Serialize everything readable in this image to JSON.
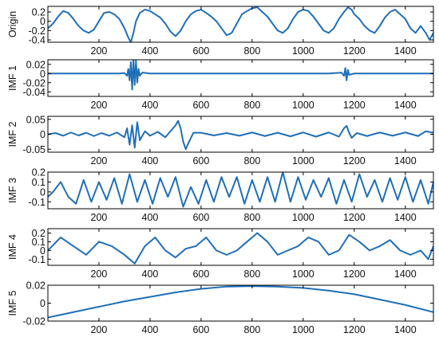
{
  "chart_data": [
    {
      "type": "line",
      "ylabel": "Origin",
      "xlim": [
        0,
        1510
      ],
      "ylim": [
        -0.45,
        0.32
      ],
      "xticks": [
        200,
        400,
        600,
        800,
        1000,
        1200,
        1400
      ],
      "yticks": [
        0.2,
        0,
        -0.2,
        -0.4
      ],
      "ytick_labels": [
        "0.2",
        "0",
        "-0.2",
        "-0.4"
      ],
      "grid": false,
      "color": "#1f6fb8",
      "series": [
        {
          "x": [
            0,
            20,
            40,
            60,
            80,
            100,
            120,
            140,
            160,
            180,
            200,
            220,
            240,
            260,
            280,
            300,
            315,
            325,
            335,
            345,
            360,
            380,
            400,
            420,
            440,
            460,
            480,
            500,
            520,
            540,
            560,
            580,
            600,
            620,
            640,
            660,
            680,
            700,
            720,
            740,
            760,
            780,
            800,
            820,
            840,
            860,
            880,
            900,
            920,
            940,
            960,
            980,
            1000,
            1020,
            1040,
            1060,
            1080,
            1100,
            1120,
            1140,
            1160,
            1175,
            1190,
            1200,
            1220,
            1240,
            1260,
            1280,
            1300,
            1320,
            1340,
            1360,
            1380,
            1400,
            1420,
            1440,
            1460,
            1480,
            1495,
            1510
          ],
          "y": [
            -0.15,
            -0.05,
            0.1,
            0.22,
            0.18,
            0.05,
            -0.1,
            -0.2,
            -0.25,
            -0.18,
            0.0,
            0.18,
            0.2,
            0.15,
            0.05,
            -0.15,
            -0.35,
            -0.45,
            -0.25,
            0.0,
            0.18,
            0.25,
            0.22,
            0.15,
            0.08,
            -0.05,
            -0.22,
            -0.32,
            -0.2,
            0.0,
            0.15,
            0.22,
            0.25,
            0.18,
            0.1,
            0.0,
            -0.15,
            -0.3,
            -0.25,
            -0.05,
            0.15,
            0.22,
            0.28,
            0.3,
            0.2,
            0.1,
            -0.05,
            -0.2,
            -0.25,
            -0.15,
            0.05,
            0.2,
            0.25,
            0.22,
            0.1,
            -0.05,
            -0.2,
            -0.25,
            -0.15,
            0.05,
            0.2,
            0.3,
            0.25,
            0.15,
            0.05,
            -0.1,
            -0.2,
            -0.25,
            -0.1,
            0.08,
            0.2,
            0.25,
            0.15,
            0.05,
            -0.15,
            -0.25,
            -0.1,
            -0.25,
            -0.4,
            -0.25
          ]
        }
      ]
    },
    {
      "type": "line",
      "ylabel": "IMF 1",
      "xlim": [
        0,
        1510
      ],
      "ylim": [
        -0.05,
        0.03
      ],
      "xticks": [
        200,
        400,
        600,
        800,
        1000,
        1200,
        1400
      ],
      "yticks": [
        0.02,
        0,
        -0.02,
        -0.04
      ],
      "ytick_labels": [
        "0.02",
        "0",
        "-0.02",
        "-0.04"
      ],
      "grid": false,
      "color": "#1f6fb8",
      "series": [
        {
          "x": [
            0,
            100,
            200,
            280,
            300,
            310,
            315,
            320,
            325,
            330,
            335,
            340,
            345,
            350,
            355,
            360,
            370,
            400,
            500,
            600,
            700,
            800,
            900,
            1000,
            1100,
            1150,
            1160,
            1165,
            1170,
            1175,
            1180,
            1200,
            1300,
            1400,
            1510
          ],
          "y": [
            0.0,
            0.0,
            0.0,
            0.0,
            0.001,
            -0.005,
            0.01,
            -0.015,
            0.025,
            -0.035,
            0.03,
            -0.025,
            0.028,
            -0.02,
            0.01,
            -0.005,
            0.002,
            0.0,
            0.0,
            0.0,
            0.0,
            0.0,
            0.0,
            0.0,
            0.0,
            0.002,
            -0.005,
            0.012,
            -0.015,
            0.008,
            -0.003,
            0.0,
            0.0,
            0.0,
            0.0
          ]
        }
      ]
    },
    {
      "type": "line",
      "ylabel": "IMF 2",
      "xlim": [
        0,
        1510
      ],
      "ylim": [
        -0.06,
        0.06
      ],
      "xticks": [
        200,
        400,
        600,
        800,
        1000,
        1200,
        1400
      ],
      "yticks": [
        0.05,
        0,
        -0.05
      ],
      "ytick_labels": [
        "0.05",
        "0",
        "-0.05"
      ],
      "grid": false,
      "color": "#1f6fb8",
      "series": [
        {
          "x": [
            0,
            30,
            60,
            90,
            120,
            150,
            180,
            210,
            240,
            270,
            300,
            310,
            320,
            330,
            340,
            350,
            360,
            380,
            400,
            430,
            460,
            480,
            500,
            510,
            520,
            530,
            540,
            550,
            570,
            600,
            650,
            700,
            750,
            800,
            850,
            900,
            950,
            1000,
            1050,
            1100,
            1140,
            1160,
            1170,
            1180,
            1190,
            1210,
            1250,
            1300,
            1350,
            1400,
            1450,
            1480,
            1510
          ],
          "y": [
            0.0,
            0.004,
            -0.005,
            0.006,
            -0.004,
            0.005,
            -0.006,
            0.004,
            -0.005,
            0.006,
            -0.01,
            0.02,
            -0.035,
            0.03,
            -0.045,
            0.04,
            -0.02,
            0.01,
            -0.005,
            0.008,
            -0.01,
            0.01,
            0.03,
            0.045,
            0.02,
            -0.025,
            -0.05,
            -0.03,
            0.005,
            0.005,
            -0.004,
            0.004,
            -0.005,
            0.006,
            -0.006,
            0.005,
            -0.007,
            0.006,
            -0.008,
            0.006,
            -0.008,
            0.02,
            0.028,
            0.005,
            -0.012,
            0.004,
            -0.006,
            0.006,
            -0.005,
            0.006,
            -0.006,
            0.01,
            0.005
          ]
        }
      ]
    },
    {
      "type": "line",
      "ylabel": "IMF 3",
      "xlim": [
        0,
        1510
      ],
      "ylim": [
        -0.17,
        0.2
      ],
      "xticks": [
        200,
        400,
        600,
        800,
        1000,
        1200,
        1400
      ],
      "yticks": [
        0.2,
        0.1,
        0,
        -0.1
      ],
      "ytick_labels": [
        "0.2",
        "0.1",
        "0",
        "-0.1"
      ],
      "grid": false,
      "color": "#1f6fb8",
      "series": [
        {
          "x": [
            0,
            20,
            50,
            80,
            110,
            140,
            170,
            200,
            230,
            260,
            290,
            320,
            350,
            380,
            410,
            440,
            470,
            500,
            530,
            560,
            590,
            620,
            650,
            680,
            710,
            740,
            770,
            800,
            830,
            860,
            890,
            920,
            950,
            980,
            1010,
            1040,
            1070,
            1100,
            1130,
            1160,
            1190,
            1220,
            1250,
            1280,
            1310,
            1340,
            1370,
            1400,
            1430,
            1460,
            1490,
            1510
          ],
          "y": [
            -0.05,
            0.0,
            0.1,
            -0.05,
            -0.12,
            0.12,
            -0.1,
            0.1,
            -0.08,
            0.14,
            -0.12,
            0.18,
            -0.1,
            0.12,
            -0.12,
            0.14,
            -0.05,
            0.15,
            -0.15,
            0.05,
            -0.12,
            0.12,
            -0.1,
            0.15,
            -0.05,
            0.15,
            -0.12,
            0.12,
            -0.1,
            0.15,
            -0.1,
            0.2,
            -0.1,
            0.15,
            -0.08,
            0.12,
            -0.05,
            0.14,
            -0.12,
            0.12,
            -0.1,
            0.18,
            -0.05,
            0.12,
            -0.1,
            0.14,
            -0.08,
            0.15,
            -0.1,
            0.12,
            -0.12,
            0.1
          ]
        }
      ]
    },
    {
      "type": "line",
      "ylabel": "IMF 4",
      "xlim": [
        0,
        1510
      ],
      "ylim": [
        -0.17,
        0.25
      ],
      "xticks": [
        200,
        400,
        600,
        800,
        1000,
        1200,
        1400
      ],
      "yticks": [
        0.2,
        0.1,
        0,
        -0.1
      ],
      "ytick_labels": [
        "0.2",
        "0.1",
        "0",
        "-0.1"
      ],
      "grid": false,
      "color": "#1f6fb8",
      "series": [
        {
          "x": [
            0,
            50,
            100,
            150,
            200,
            250,
            300,
            340,
            380,
            420,
            460,
            500,
            540,
            580,
            620,
            660,
            700,
            740,
            780,
            820,
            860,
            900,
            940,
            980,
            1020,
            1060,
            1100,
            1140,
            1180,
            1220,
            1260,
            1300,
            1340,
            1380,
            1420,
            1460,
            1490,
            1510
          ],
          "y": [
            0.0,
            0.15,
            0.05,
            -0.05,
            0.1,
            0.05,
            -0.05,
            -0.15,
            0.05,
            0.15,
            0.0,
            -0.08,
            0.02,
            0.05,
            0.15,
            0.0,
            -0.05,
            0.0,
            0.1,
            0.2,
            0.1,
            -0.05,
            0.0,
            0.05,
            0.15,
            0.1,
            -0.05,
            0.0,
            0.18,
            0.1,
            0.0,
            0.05,
            0.12,
            0.0,
            -0.05,
            0.0,
            -0.1,
            0.05
          ]
        }
      ]
    },
    {
      "type": "line",
      "ylabel": "IMF 5",
      "xlim": [
        0,
        1510
      ],
      "ylim": [
        -0.02,
        0.02
      ],
      "xticks": [
        200,
        400,
        600,
        800,
        1000,
        1200,
        1400
      ],
      "yticks": [
        0.02,
        0,
        -0.02
      ],
      "ytick_labels": [
        "0.02",
        "0",
        "-0.02"
      ],
      "grid": false,
      "color": "#1f6fb8",
      "series": [
        {
          "x": [
            0,
            100,
            200,
            300,
            400,
            500,
            600,
            700,
            800,
            900,
            1000,
            1100,
            1200,
            1300,
            1400,
            1510
          ],
          "y": [
            -0.016,
            -0.01,
            -0.004,
            0.002,
            0.007,
            0.012,
            0.016,
            0.0185,
            0.019,
            0.0185,
            0.017,
            0.014,
            0.01,
            0.004,
            -0.002,
            -0.01
          ]
        }
      ]
    }
  ]
}
